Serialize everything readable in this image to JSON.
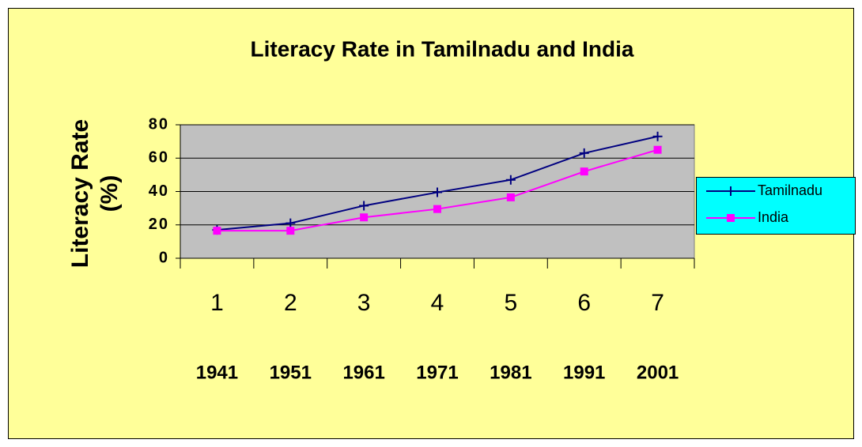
{
  "chart_data": {
    "type": "line",
    "title": "Literacy Rate in Tamilnadu and India",
    "y_label": [
      "Literacy Rate",
      "(%)"
    ],
    "categories": [
      "1",
      "2",
      "3",
      "4",
      "5",
      "6",
      "7"
    ],
    "sub_categories": [
      "1941",
      "1951",
      "1961",
      "1971",
      "1981",
      "1991",
      "2001"
    ],
    "series": [
      {
        "name": "Tamilnadu",
        "color": "#000080",
        "marker": "plus",
        "values": [
          17,
          21,
          31.5,
          39.5,
          47,
          63,
          73
        ]
      },
      {
        "name": "India",
        "color": "#ff00ff",
        "marker": "square",
        "values": [
          16.5,
          16.5,
          24.5,
          29.5,
          36.5,
          52,
          65
        ]
      }
    ],
    "ylim": [
      0,
      80
    ],
    "yticks": [
      0,
      20,
      40,
      60,
      80
    ],
    "grid": true,
    "legend": "right"
  }
}
